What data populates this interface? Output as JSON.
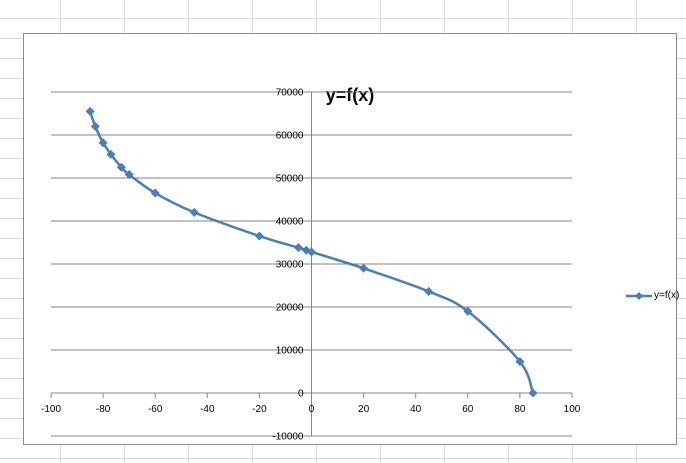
{
  "chart_data": {
    "type": "scatter",
    "title": "y=f(x)",
    "xlabel": "",
    "ylabel": "",
    "xlim": [
      -100,
      100
    ],
    "ylim": [
      -10000,
      70000
    ],
    "x_ticks": [
      "-100",
      "-80",
      "-60",
      "-40",
      "-20",
      "0",
      "20",
      "40",
      "60",
      "80",
      "100"
    ],
    "y_ticks": [
      "-10000",
      "0",
      "10000",
      "20000",
      "30000",
      "40000",
      "50000",
      "60000",
      "70000"
    ],
    "grid": "horizontal",
    "legend_position": "right",
    "series": [
      {
        "name": "y=f(x)",
        "color": "#4a7ebb",
        "marker": "diamond",
        "line": "smooth",
        "x": [
          -85,
          -83,
          -80,
          -77,
          -73,
          -70,
          -60,
          -45,
          -20,
          -5,
          -2,
          0,
          20,
          45,
          60,
          80,
          85
        ],
        "y": [
          65500,
          62000,
          58200,
          55500,
          52500,
          50800,
          46500,
          42000,
          36500,
          33800,
          33200,
          32800,
          29000,
          23600,
          19000,
          7300,
          0
        ]
      }
    ]
  }
}
